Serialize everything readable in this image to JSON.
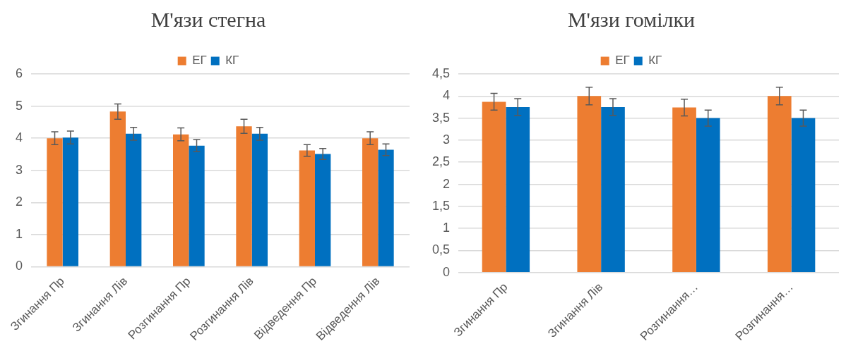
{
  "chart_data": [
    {
      "type": "bar",
      "title": "М'язи стегна",
      "categories": [
        "Згинання Пр",
        "Згинання Лів",
        "Розгинання Пр",
        "Розгинання Лів",
        "Відведення Пр",
        "Відведення Лів"
      ],
      "series": [
        {
          "name": "ЕГ",
          "color": "#ed7d31",
          "values": [
            4.0,
            4.83,
            4.12,
            4.37,
            3.62,
            4.0
          ],
          "errors": [
            0.2,
            0.24,
            0.2,
            0.22,
            0.18,
            0.2
          ]
        },
        {
          "name": "КГ",
          "color": "#0070c0",
          "values": [
            4.02,
            4.14,
            3.77,
            4.14,
            3.51,
            3.64
          ],
          "errors": [
            0.2,
            0.2,
            0.19,
            0.2,
            0.17,
            0.18
          ]
        }
      ],
      "ylim": [
        0,
        6
      ],
      "yticks": [
        0,
        1,
        2,
        3,
        4,
        5,
        6
      ],
      "grid": "y",
      "legend": "top"
    },
    {
      "type": "bar",
      "title": "М'язи гомілки",
      "categories": [
        "Згинання Пр",
        "Згинання Лів",
        "Розгинання…",
        "Розгинання…"
      ],
      "series": [
        {
          "name": "ЕГ",
          "color": "#ed7d31",
          "values": [
            3.87,
            4.0,
            3.74,
            4.0
          ],
          "errors": [
            0.19,
            0.2,
            0.19,
            0.2
          ]
        },
        {
          "name": "КГ",
          "color": "#0070c0",
          "values": [
            3.75,
            3.75,
            3.5,
            3.5
          ],
          "errors": [
            0.19,
            0.19,
            0.18,
            0.18
          ]
        }
      ],
      "ylim": [
        0,
        4.5
      ],
      "yticks": [
        0,
        {
          "value": 0.5,
          "label": "0,5"
        },
        1,
        {
          "value": 1.5,
          "label": "1,5"
        },
        2,
        {
          "value": 2.5,
          "label": "2,5"
        },
        3,
        {
          "value": 3.5,
          "label": "3,5"
        },
        4,
        {
          "value": 4.5,
          "label": "4,5"
        }
      ],
      "grid": "y",
      "legend": "top"
    }
  ]
}
